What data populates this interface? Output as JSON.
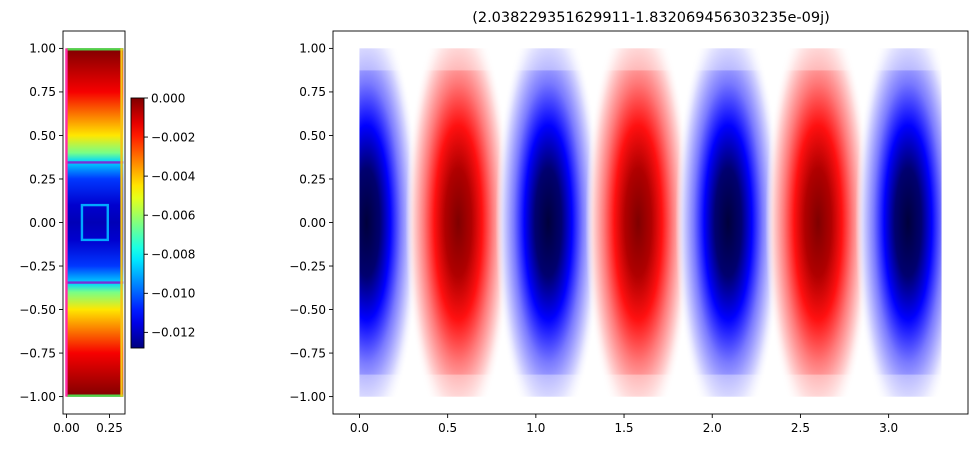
{
  "chart_data": [
    {
      "type": "heatmap",
      "title": "",
      "xlabel": "",
      "ylabel": "",
      "xlim": [
        -0.02,
        0.34
      ],
      "ylim": [
        -1.1,
        1.1
      ],
      "x_ticks": [
        0.0,
        0.25
      ],
      "x_tick_labels": [
        "0.00",
        "0.25"
      ],
      "y_ticks": [
        1.0,
        0.75,
        0.5,
        0.25,
        0.0,
        -0.25,
        -0.5,
        -0.75,
        -1.0
      ],
      "y_tick_labels": [
        "1.00",
        "0.75",
        "0.50",
        "0.25",
        "0.00",
        "−0.25",
        "−0.50",
        "−0.75",
        "−1.00"
      ],
      "colormap": "jet",
      "field_profile_y": [
        1.0,
        0.75,
        0.5,
        0.4,
        0.35,
        0.25,
        0.1,
        0.0,
        -0.1,
        -0.25,
        -0.35,
        -0.4,
        -0.5,
        -0.75,
        -1.0
      ],
      "field_profile_value": [
        0.0,
        -0.0015,
        -0.0045,
        -0.0065,
        -0.0085,
        -0.0105,
        -0.0118,
        -0.0121,
        -0.0118,
        -0.0105,
        -0.0085,
        -0.0065,
        -0.0045,
        -0.0015,
        0.0
      ],
      "overlays": [
        {
          "kind": "line",
          "color": "#7b2fd6",
          "x": [
            0.0,
            0.33
          ],
          "y": [
            0.345,
            0.345
          ]
        },
        {
          "kind": "line",
          "color": "#7b2fd6",
          "x": [
            0.0,
            0.33
          ],
          "y": [
            -0.345,
            -0.345
          ]
        },
        {
          "kind": "line",
          "color": "#52d14a",
          "x": [
            0.0,
            0.33
          ],
          "y": [
            0.995,
            0.995
          ]
        },
        {
          "kind": "line",
          "color": "#52d14a",
          "x": [
            0.0,
            0.33
          ],
          "y": [
            -0.995,
            -0.995
          ]
        },
        {
          "kind": "line",
          "color": "#f5c518",
          "x": [
            0.32,
            0.32
          ],
          "y": [
            -1.0,
            1.0
          ]
        },
        {
          "kind": "line",
          "color": "#ff2da6",
          "x": [
            0.0,
            0.0
          ],
          "y": [
            -1.0,
            1.0
          ]
        },
        {
          "kind": "rect",
          "color": "#00a8ff",
          "x": [
            0.09,
            0.24
          ],
          "y": [
            -0.1,
            0.1
          ]
        }
      ],
      "colorbar": {
        "min": -0.0128,
        "max": 0.0,
        "ticks": [
          0.0,
          -0.002,
          -0.004,
          -0.006,
          -0.008,
          -0.01,
          -0.012
        ],
        "tick_labels": [
          "0.000",
          "−0.002",
          "−0.004",
          "−0.006",
          "−0.008",
          "−0.010",
          "−0.012"
        ]
      }
    },
    {
      "type": "heatmap",
      "title": "(2.038229351629911-1.832069456303235e-09j)",
      "xlabel": "",
      "ylabel": "",
      "xlim": [
        -0.15,
        3.45
      ],
      "ylim": [
        -1.1,
        1.1
      ],
      "x_ticks": [
        0.0,
        0.5,
        1.0,
        1.5,
        2.0,
        2.5,
        3.0
      ],
      "x_tick_labels": [
        "0.0",
        "0.5",
        "1.0",
        "1.5",
        "2.0",
        "2.5",
        "3.0"
      ],
      "y_ticks": [
        1.0,
        0.75,
        0.5,
        0.25,
        0.0,
        -0.25,
        -0.5,
        -0.75,
        -1.0
      ],
      "y_tick_labels": [
        "1.00",
        "0.75",
        "0.50",
        "0.25",
        "0.00",
        "−0.25",
        "−0.50",
        "−0.75",
        "−1.00"
      ],
      "colormap": "seismic",
      "domain_x": [
        0.0,
        3.3
      ],
      "domain_y": [
        -1.0,
        1.0
      ],
      "lobe_centers_x": [
        0.04,
        0.56,
        1.07,
        1.58,
        2.09,
        2.6,
        3.11
      ],
      "lobe_signs": [
        -1,
        1,
        -1,
        1,
        -1,
        1,
        -1
      ]
    }
  ]
}
